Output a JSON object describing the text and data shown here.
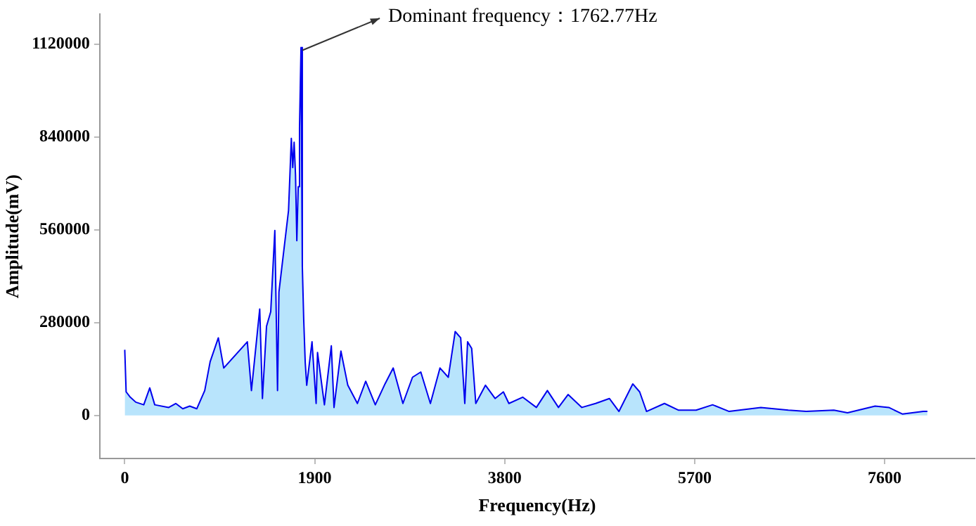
{
  "chart_data": {
    "type": "area",
    "xlabel": "Frequency(Hz)",
    "ylabel": "Amplitude(mV)",
    "annotations": [
      {
        "text": "Dominant frequency：1762.77Hz",
        "x": 1762.77,
        "y": 1110000
      }
    ],
    "xlim": [
      -250,
      8500
    ],
    "xticks": [
      0,
      1900,
      3800,
      5700,
      7600
    ],
    "ylim": [
      -130000,
      1210000
    ],
    "yticks": [
      0,
      280000,
      560000,
      840000,
      1120000
    ],
    "grid": false,
    "legend": false,
    "marker": "none",
    "line_style": "solid",
    "series": [
      {
        "color": "#0000ee",
        "x": [
          0,
          14,
          55,
          110,
          190,
          250,
          300,
          440,
          510,
          580,
          650,
          720,
          800,
          854,
          936,
          990,
          1226,
          1267,
          1350,
          1377,
          1418,
          1460,
          1501,
          1528,
          1542,
          1638,
          1666,
          1680,
          1694,
          1708,
          1721,
          1735,
          1748,
          1762.77,
          1776,
          1790,
          1805,
          1820,
          1873,
          1914,
          1928,
          1997,
          2066,
          2093,
          2162,
          2231,
          2327,
          2410,
          2506,
          2603,
          2685,
          2782,
          2878,
          2961,
          3057,
          3153,
          3236,
          3305,
          3360,
          3401,
          3429,
          3470,
          3511,
          3608,
          3704,
          3787,
          3842,
          3980,
          4117,
          4227,
          4338,
          4434,
          4572,
          4709,
          4847,
          4943,
          5081,
          5150,
          5219,
          5398,
          5536,
          5715,
          5880,
          6045,
          6362,
          6637,
          6816,
          7092,
          7229,
          7505,
          7642,
          7780,
          7987,
          8028
        ],
        "values": [
          198000,
          71000,
          55000,
          40000,
          32000,
          83000,
          32000,
          24000,
          36000,
          20000,
          28000,
          20000,
          75000,
          162000,
          234000,
          143000,
          222000,
          75000,
          321000,
          51000,
          269000,
          313000,
          558000,
          75000,
          372000,
          618000,
          836000,
          748000,
          824000,
          725000,
          527000,
          690000,
          867000,
          1110000,
          450000,
          289000,
          160000,
          91000,
          222000,
          36000,
          190000,
          32000,
          210000,
          24000,
          194000,
          91000,
          36000,
          103000,
          32000,
          95000,
          143000,
          36000,
          115000,
          131000,
          36000,
          143000,
          115000,
          253000,
          234000,
          36000,
          222000,
          202000,
          36000,
          91000,
          51000,
          71000,
          36000,
          55000,
          24000,
          75000,
          24000,
          63000,
          24000,
          36000,
          51000,
          12000,
          95000,
          71000,
          12000,
          36000,
          16000,
          16000,
          32000,
          12000,
          24000,
          16000,
          12000,
          16000,
          8000,
          28000,
          24000,
          4000,
          12000,
          12000
        ]
      }
    ]
  }
}
